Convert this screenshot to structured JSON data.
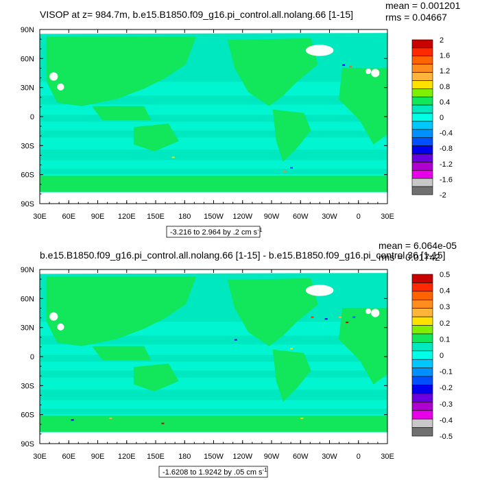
{
  "colors": {
    "ocean_base": "#00e8c0",
    "ocean_band": "#00ffdc",
    "land": "#12e65a",
    "missing": "#ffffff"
  },
  "chart_data": [
    {
      "type": "heatmap",
      "title": "VISOP at z= 984.7m, b.e15.B1850.f09_g16.pi_control.all.nolang.66 [1-15]",
      "stats": {
        "mean_label": "mean = 0.001201",
        "rms_label": "rms = 0.04667"
      },
      "x_ticks": [
        "30E",
        "60E",
        "90E",
        "120E",
        "150E",
        "180",
        "150W",
        "120W",
        "90W",
        "60W",
        "30W",
        "0",
        "30E"
      ],
      "y_ticks": [
        "90N",
        "60N",
        "30N",
        "0",
        "30S",
        "60S",
        "90S"
      ],
      "range_label": "-3.216 to 2.964 by .2 cm s",
      "range_unit_sup": "-1",
      "colorbar": {
        "labels": [
          "2",
          "1.6",
          "1.2",
          "0.8",
          "0.4",
          "0",
          "-0.4",
          "-0.8",
          "-1.2",
          "-1.6",
          "-2"
        ],
        "colors": [
          "#c80000",
          "#ff2800",
          "#ff6400",
          "#ff8c1e",
          "#ffb43c",
          "#ffe100",
          "#7fef00",
          "#12e65a",
          "#00e8c0",
          "#00ffe6",
          "#00c8ff",
          "#0090ff",
          "#0050ff",
          "#0000f0",
          "#6a00e0",
          "#b000d0",
          "#e800e8",
          "#c8c8c8",
          "#707070"
        ]
      }
    },
    {
      "type": "heatmap",
      "title": "b.e15.B1850.f09_g16.pi_control.all.nolang.66 [1-15] - b.e15.B1850.f09_g16.pi_control.36 [1-15]",
      "stats": {
        "mean_label": "mean = 6.064e-05",
        "rms_label": "rms = 0.01742"
      },
      "x_ticks": [
        "30E",
        "60E",
        "90E",
        "120E",
        "150E",
        "180",
        "150W",
        "120W",
        "90W",
        "60W",
        "30W",
        "0",
        "30E"
      ],
      "y_ticks": [
        "90N",
        "60N",
        "30N",
        "0",
        "30S",
        "60S",
        "90S"
      ],
      "range_label": "-1.6208 to 1.9242 by .05 cm s",
      "range_unit_sup": "-1",
      "colorbar": {
        "labels": [
          "0.5",
          "0.4",
          "0.3",
          "0.2",
          "0.1",
          "0",
          "-0.1",
          "-0.2",
          "-0.3",
          "-0.4",
          "-0.5"
        ],
        "colors": [
          "#c80000",
          "#ff2800",
          "#ff6400",
          "#ff8c1e",
          "#ffb43c",
          "#ffe100",
          "#7fef00",
          "#12e65a",
          "#00e8c0",
          "#00ffe6",
          "#00c8ff",
          "#0090ff",
          "#0050ff",
          "#0000f0",
          "#6a00e0",
          "#b000d0",
          "#e800e8",
          "#c8c8c8",
          "#707070"
        ]
      }
    }
  ]
}
